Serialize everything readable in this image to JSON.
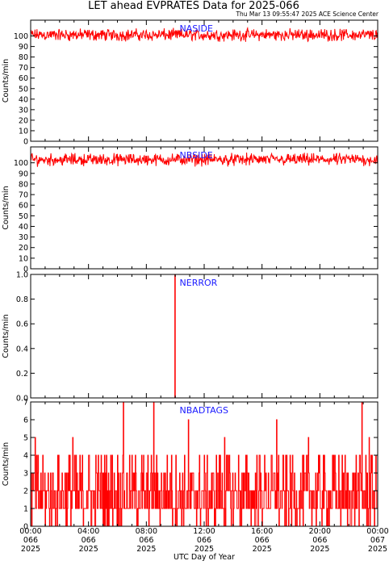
{
  "header": {
    "title": "LET ahead EVPRATES Data for 2025-066",
    "timestamp": "Thu Mar 13 09:55:47 2025 ACE Science Center"
  },
  "colors": {
    "series": "#ff0000",
    "panel_label": "#1a1aff",
    "axes": "#000000"
  },
  "chart_data": [
    {
      "type": "line",
      "series": [
        {
          "name": "NASIDE",
          "values": []
        }
      ],
      "ylabel": "Counts/min",
      "ylim": [
        0,
        115
      ],
      "yticks": [
        0,
        10,
        20,
        30,
        40,
        50,
        60,
        70,
        80,
        90,
        100
      ],
      "ytick_labels": [
        "0",
        "10",
        "20",
        "30",
        "40",
        "50",
        "60",
        "70",
        "80",
        "90",
        "100"
      ],
      "typical_level": 100,
      "typical_range": [
        94,
        108
      ],
      "xlim": [
        0,
        24
      ]
    },
    {
      "type": "line",
      "series": [
        {
          "name": "NBSIDE",
          "values": []
        }
      ],
      "ylabel": "Counts/min",
      "ylim": [
        0,
        115
      ],
      "yticks": [
        0,
        10,
        20,
        30,
        40,
        50,
        60,
        70,
        80,
        90,
        100
      ],
      "ytick_labels": [
        "0",
        "10",
        "20",
        "30",
        "40",
        "50",
        "60",
        "70",
        "80",
        "90",
        "100"
      ],
      "typical_level": 102,
      "typical_range": [
        96,
        110
      ],
      "xlim": [
        0,
        24
      ]
    },
    {
      "type": "line",
      "series": [
        {
          "name": "NERROR",
          "values": []
        }
      ],
      "ylabel": "Counts/min",
      "ylim": [
        0,
        1
      ],
      "yticks": [
        0,
        0.2,
        0.4,
        0.6,
        0.8,
        1.0
      ],
      "ytick_labels": [
        "0.0",
        "0.2",
        "0.4",
        "0.6",
        "0.8",
        "1.0"
      ],
      "baseline": 0,
      "spikes": [
        {
          "x_hours": 9.95,
          "y": 1.0
        }
      ],
      "xlim": [
        0,
        24
      ]
    },
    {
      "type": "line",
      "series": [
        {
          "name": "NBADTAGS",
          "values": []
        }
      ],
      "ylabel": "Counts/min",
      "ylim": [
        0,
        7
      ],
      "yticks": [
        0,
        1,
        2,
        3,
        4,
        5,
        6,
        7
      ],
      "ytick_labels": [
        "0",
        "1",
        "2",
        "3",
        "4",
        "5",
        "6",
        "7"
      ],
      "typical_range": [
        0,
        4
      ],
      "spikes": [
        {
          "x_hours": 6.4,
          "y": 7
        },
        {
          "x_hours": 8.5,
          "y": 7
        },
        {
          "x_hours": 10.9,
          "y": 6
        },
        {
          "x_hours": 17.0,
          "y": 6
        },
        {
          "x_hours": 22.9,
          "y": 7
        },
        {
          "x_hours": 23.4,
          "y": 5
        },
        {
          "x_hours": 0.3,
          "y": 5
        },
        {
          "x_hours": 2.9,
          "y": 5
        },
        {
          "x_hours": 13.4,
          "y": 5
        },
        {
          "x_hours": 19.2,
          "y": 5
        }
      ],
      "xlim": [
        0,
        24
      ]
    }
  ],
  "x_axis": {
    "xlabel": "UTC Day of Year",
    "ticks_hours": [
      0,
      4,
      8,
      12,
      16,
      20,
      24
    ],
    "tick_labels": [
      [
        "00:00",
        "066",
        "2025"
      ],
      [
        "04:00",
        "066",
        "2025"
      ],
      [
        "08:00",
        "066",
        "2025"
      ],
      [
        "12:00",
        "066",
        "2025"
      ],
      [
        "16:00",
        "066",
        "2025"
      ],
      [
        "20:00",
        "066",
        "2025"
      ],
      [
        "00:00",
        "067",
        "2025"
      ]
    ]
  }
}
